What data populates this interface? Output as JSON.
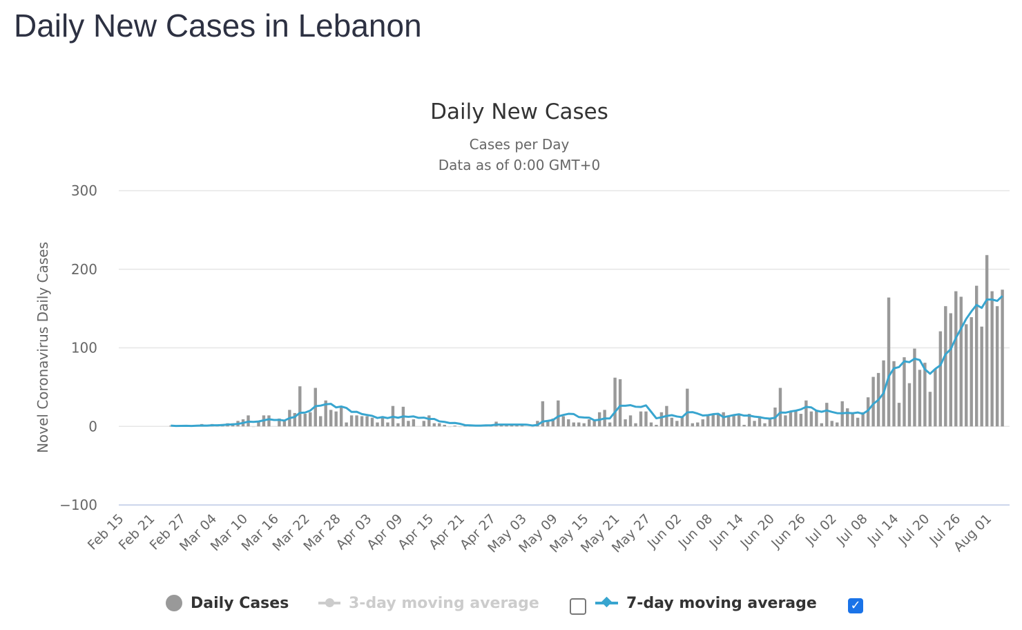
{
  "page": {
    "title": "Daily New Cases in Lebanon"
  },
  "colors": {
    "bars": "#999999",
    "ma7": "#38a5cf",
    "ma3_disabled": "#cccccc",
    "grid": "#e6e6e6",
    "axis": "#ccd6eb",
    "checkbox_checked": "#1a73e8"
  },
  "legend": {
    "daily": {
      "label": "Daily Cases",
      "icon": "circle-marker-icon"
    },
    "ma3": {
      "label": "3-day moving average",
      "icon": "line-marker-icon",
      "enabled": false,
      "checked": false
    },
    "ma7": {
      "label": "7-day moving average",
      "icon": "line-marker-icon",
      "enabled": true,
      "checked": true
    }
  },
  "chart_data": {
    "type": "bar",
    "title": "Daily New Cases",
    "subtitle": [
      "Cases per Day",
      "Data as of 0:00 GMT+0"
    ],
    "xlabel": "",
    "ylabel": "Novel Coronavirus Daily Cases",
    "ylim": [
      -100,
      300
    ],
    "yticks": [
      "300",
      "200",
      "100",
      "0",
      "−100"
    ],
    "ytick_values": [
      300,
      200,
      100,
      0,
      -100
    ],
    "x_first_tick": "Feb 15",
    "x_start": "Feb 24",
    "x_step": "1 day",
    "x_end": "Aug 03",
    "xticks": [
      "Feb 15",
      "Feb 21",
      "Feb 27",
      "Mar 04",
      "Mar 10",
      "Mar 16",
      "Mar 22",
      "Mar 28",
      "Apr 03",
      "Apr 09",
      "Apr 15",
      "Apr 21",
      "Apr 27",
      "May 03",
      "May 09",
      "May 15",
      "May 21",
      "May 27",
      "Jun 02",
      "Jun 08",
      "Jun 14",
      "Jun 20",
      "Jun 26",
      "Jul 02",
      "Jul 08",
      "Jul 14",
      "Jul 20",
      "Jul 26",
      "Aug 01"
    ],
    "grid": true,
    "legend_position": "bottom",
    "series": [
      {
        "name": "Daily Cases",
        "type": "bar",
        "values": [
          1,
          0,
          1,
          1,
          0,
          2,
          3,
          0,
          3,
          1,
          3,
          4,
          4,
          7,
          9,
          14,
          -1,
          7,
          14,
          14,
          0,
          10,
          8,
          21,
          17,
          51,
          16,
          18,
          49,
          13,
          33,
          21,
          19,
          24,
          5,
          14,
          14,
          13,
          13,
          11,
          5,
          13,
          5,
          26,
          4,
          25,
          7,
          9,
          0,
          7,
          14,
          4,
          4,
          2,
          -1,
          1,
          -1,
          2,
          2,
          2,
          2,
          1,
          1,
          6,
          2,
          2,
          2,
          2,
          1,
          0,
          -1,
          7,
          32,
          8,
          10,
          33,
          13,
          9,
          5,
          5,
          4,
          9,
          9,
          18,
          21,
          5,
          62,
          60,
          9,
          14,
          4,
          19,
          19,
          5,
          2,
          18,
          26,
          11,
          7,
          13,
          48,
          4,
          5,
          9,
          14,
          16,
          16,
          18,
          13,
          15,
          16,
          2,
          16,
          7,
          13,
          4,
          11,
          24,
          49,
          14,
          18,
          20,
          16,
          33,
          19,
          20,
          4,
          30,
          7,
          5,
          32,
          23,
          16,
          11,
          18,
          37,
          63,
          68,
          84,
          164,
          83,
          30,
          88,
          55,
          99,
          72,
          81,
          44,
          73,
          121,
          153,
          144,
          172,
          165,
          130,
          139,
          179,
          127,
          218,
          172,
          153,
          174
        ]
      },
      {
        "name": "7-day moving average",
        "type": "line",
        "derived_from": "Daily Cases",
        "window": 7
      },
      {
        "name": "3-day moving average",
        "type": "line",
        "visible": false
      }
    ]
  }
}
